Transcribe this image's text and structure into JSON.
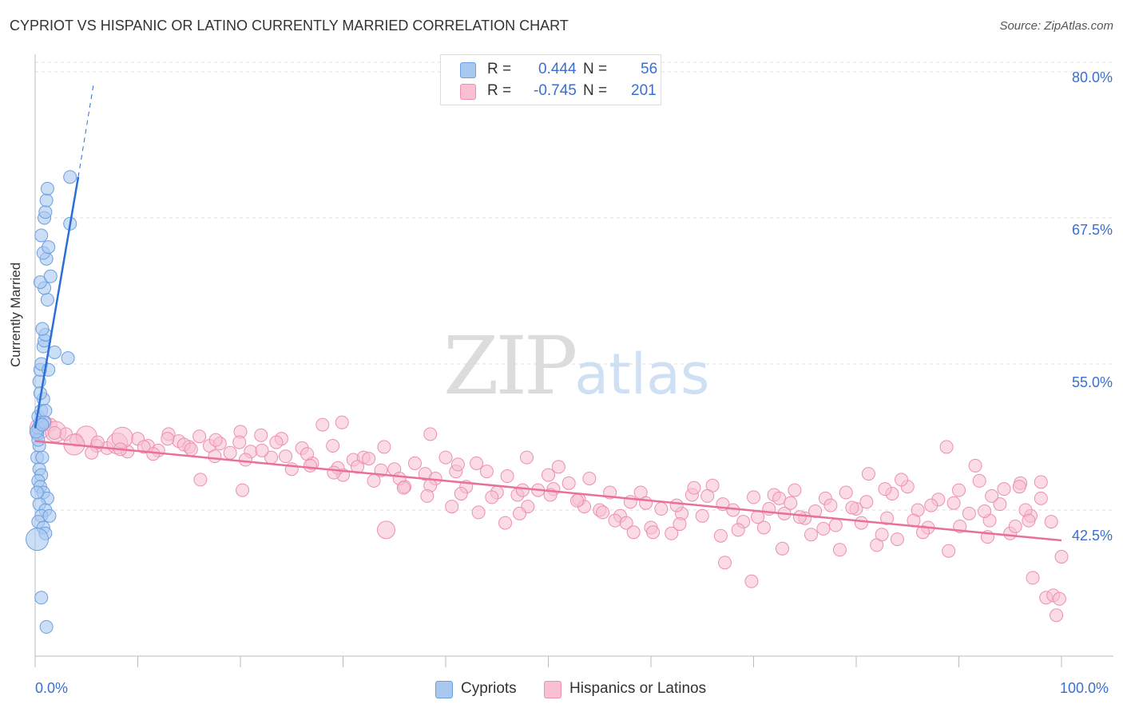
{
  "title": "CYPRIOT VS HISPANIC OR LATINO CURRENTLY MARRIED CORRELATION CHART",
  "source": "Source: ZipAtlas.com",
  "watermark": {
    "zip": "ZIP",
    "atlas": "atlas"
  },
  "legend": {
    "rows": [
      {
        "r_label": "R =",
        "r_value": "0.444",
        "n_label": "N =",
        "n_value": "56",
        "color": "#a8c8f0",
        "border": "#6a9fe0"
      },
      {
        "r_label": "R =",
        "r_value": "-0.745",
        "n_label": "N =",
        "n_value": "201",
        "color": "#f8c0d2",
        "border": "#ec8fae"
      }
    ]
  },
  "bottom_legend": [
    {
      "label": "Cypriots",
      "color": "#a8c8f0",
      "border": "#6a9fe0"
    },
    {
      "label": "Hispanics or Latinos",
      "color": "#f8c0d2",
      "border": "#ec8fae"
    }
  ],
  "chart_data": {
    "type": "scatter",
    "title": "CYPRIOT VS HISPANIC OR LATINO CURRENTLY MARRIED CORRELATION CHART",
    "xlabel": "",
    "ylabel": "Currently Married",
    "xlim": [
      0,
      100
    ],
    "ylim": [
      30,
      81.5
    ],
    "x_tick_labels": [
      "0.0%",
      "100.0%"
    ],
    "y_ticks": [
      42.5,
      55.0,
      67.5,
      80.0
    ],
    "y_tick_labels": [
      "42.5%",
      "55.0%",
      "67.5%",
      "80.0%"
    ],
    "grid": true,
    "colors": {
      "cypriot": "#6a9fe0",
      "cypriot_fill": "#a8c8f0",
      "hispanic": "#ec8fae",
      "hispanic_fill": "#f8c0d2",
      "cypriot_line": "#2b6fd6",
      "hispanic_line": "#e8709a"
    },
    "series": [
      {
        "name": "Cypriots",
        "trend": {
          "x": [
            0.0,
            4.2
          ],
          "y": [
            49.5,
            71.0
          ],
          "dashed_to": [
            5.7,
            79.0
          ]
        },
        "points": [
          [
            0.2,
            49.0
          ],
          [
            0.3,
            49.5
          ],
          [
            0.4,
            48.0
          ],
          [
            0.2,
            47.0
          ],
          [
            0.5,
            50.0
          ],
          [
            0.3,
            50.5
          ],
          [
            0.6,
            51.0
          ],
          [
            0.8,
            52.0
          ],
          [
            0.4,
            53.5
          ],
          [
            0.5,
            54.5
          ],
          [
            0.6,
            55.0
          ],
          [
            0.8,
            56.5
          ],
          [
            0.9,
            57.0
          ],
          [
            1.0,
            57.5
          ],
          [
            0.7,
            58.0
          ],
          [
            1.2,
            60.5
          ],
          [
            0.9,
            61.5
          ],
          [
            0.5,
            62.0
          ],
          [
            1.5,
            62.5
          ],
          [
            1.1,
            64.0
          ],
          [
            0.8,
            64.5
          ],
          [
            1.3,
            65.0
          ],
          [
            0.6,
            66.0
          ],
          [
            0.9,
            67.5
          ],
          [
            3.4,
            67.0
          ],
          [
            1.0,
            68.0
          ],
          [
            1.1,
            69.0
          ],
          [
            1.2,
            70.0
          ],
          [
            3.4,
            71.0
          ],
          [
            1.9,
            56.0
          ],
          [
            3.2,
            55.5
          ],
          [
            1.3,
            54.5
          ],
          [
            1.0,
            51.0
          ],
          [
            0.4,
            46.0
          ],
          [
            0.6,
            45.5
          ],
          [
            0.3,
            45.0
          ],
          [
            0.5,
            44.5
          ],
          [
            0.8,
            44.0
          ],
          [
            1.2,
            43.5
          ],
          [
            0.4,
            43.0
          ],
          [
            1.0,
            42.5
          ],
          [
            0.6,
            42.0
          ],
          [
            1.4,
            42.0
          ],
          [
            0.3,
            41.5
          ],
          [
            0.8,
            41.0
          ],
          [
            1.0,
            40.5
          ],
          [
            0.2,
            40.0
          ],
          [
            0.6,
            35.0
          ],
          [
            1.1,
            32.5
          ],
          [
            0.3,
            48.5
          ],
          [
            0.1,
            49.2
          ],
          [
            0.2,
            44.0
          ],
          [
            0.7,
            47.0
          ],
          [
            0.9,
            50.0
          ],
          [
            0.5,
            52.5
          ],
          [
            0.7,
            49.8
          ]
        ],
        "point_sizes": "mostly r≈8, a few larger (r≈14) near x≈0"
      },
      {
        "name": "Hispanics or Latinos",
        "trend": {
          "x": [
            0.0,
            100.0
          ],
          "y": [
            48.4,
            39.9
          ]
        },
        "points": [
          [
            0.5,
            49.5
          ],
          [
            1.0,
            50.0
          ],
          [
            1.5,
            49.8
          ],
          [
            2.0,
            49.2
          ],
          [
            3.0,
            49.0
          ],
          [
            4.0,
            48.5
          ],
          [
            5.0,
            48.8
          ],
          [
            6.0,
            48.0
          ],
          [
            7.0,
            47.8
          ],
          [
            8.0,
            48.2
          ],
          [
            9.0,
            47.5
          ],
          [
            10.0,
            48.6
          ],
          [
            11.0,
            48.0
          ],
          [
            12.0,
            47.6
          ],
          [
            13.0,
            49.0
          ],
          [
            14.0,
            48.4
          ],
          [
            15.0,
            47.9
          ],
          [
            16.0,
            48.8
          ],
          [
            17.0,
            48.0
          ],
          [
            18.0,
            48.2
          ],
          [
            19.0,
            47.4
          ],
          [
            20.0,
            49.2
          ],
          [
            21.0,
            47.5
          ],
          [
            22.0,
            48.9
          ],
          [
            23.0,
            47.0
          ],
          [
            24.0,
            48.6
          ],
          [
            25.0,
            46.0
          ],
          [
            26.0,
            47.8
          ],
          [
            27.0,
            46.5
          ],
          [
            28.0,
            49.8
          ],
          [
            29.0,
            48.0
          ],
          [
            30.0,
            45.5
          ],
          [
            31.0,
            46.8
          ],
          [
            32.0,
            47.0
          ],
          [
            33.0,
            45.0
          ],
          [
            34.0,
            47.9
          ],
          [
            35.0,
            46.0
          ],
          [
            36.0,
            44.5
          ],
          [
            37.0,
            46.5
          ],
          [
            38.0,
            45.6
          ],
          [
            39.0,
            45.2
          ],
          [
            40.0,
            47.0
          ],
          [
            41.0,
            45.8
          ],
          [
            42.0,
            44.5
          ],
          [
            43.0,
            46.5
          ],
          [
            44.0,
            45.8
          ],
          [
            45.0,
            44.0
          ],
          [
            46.0,
            45.4
          ],
          [
            47.0,
            43.8
          ],
          [
            48.0,
            42.8
          ],
          [
            49.0,
            44.2
          ],
          [
            50.0,
            45.5
          ],
          [
            51.0,
            46.2
          ],
          [
            52.0,
            44.8
          ],
          [
            53.0,
            43.4
          ],
          [
            54.0,
            45.2
          ],
          [
            55.0,
            42.5
          ],
          [
            56.0,
            44.0
          ],
          [
            57.0,
            42.0
          ],
          [
            58.0,
            43.2
          ],
          [
            59.0,
            44.0
          ],
          [
            60.0,
            41.0
          ],
          [
            61.0,
            42.6
          ],
          [
            62.0,
            40.5
          ],
          [
            63.0,
            42.2
          ],
          [
            64.0,
            43.8
          ],
          [
            65.0,
            42.0
          ],
          [
            66.0,
            44.6
          ],
          [
            67.0,
            43.0
          ],
          [
            68.0,
            42.5
          ],
          [
            69.0,
            41.5
          ],
          [
            70.0,
            43.6
          ],
          [
            71.0,
            41.0
          ],
          [
            72.0,
            43.8
          ],
          [
            73.0,
            42.2
          ],
          [
            74.0,
            44.2
          ],
          [
            75.0,
            41.8
          ],
          [
            76.0,
            42.4
          ],
          [
            77.0,
            43.5
          ],
          [
            78.0,
            41.2
          ],
          [
            79.0,
            44.0
          ],
          [
            80.0,
            42.6
          ],
          [
            81.0,
            43.2
          ],
          [
            82.0,
            39.5
          ],
          [
            83.0,
            41.8
          ],
          [
            84.0,
            40.0
          ],
          [
            85.0,
            44.5
          ],
          [
            86.0,
            42.5
          ],
          [
            87.0,
            41.0
          ],
          [
            88.0,
            43.4
          ],
          [
            89.0,
            39.0
          ],
          [
            90.0,
            44.2
          ],
          [
            91.0,
            42.2
          ],
          [
            92.0,
            45.0
          ],
          [
            93.0,
            41.6
          ],
          [
            94.0,
            43.0
          ],
          [
            95.0,
            40.5
          ],
          [
            96.0,
            44.8
          ],
          [
            97.0,
            42.0
          ],
          [
            98.0,
            43.5
          ],
          [
            99.0,
            41.5
          ],
          [
            100.0,
            38.5
          ],
          [
            47.5,
            44.2
          ],
          [
            62.5,
            42.9
          ],
          [
            72.5,
            43.5
          ],
          [
            82.5,
            40.4
          ],
          [
            92.5,
            42.4
          ],
          [
            96.5,
            42.5
          ],
          [
            98.5,
            35.0
          ],
          [
            99.5,
            33.5
          ],
          [
            5.5,
            47.4
          ],
          [
            8.5,
            48.7
          ],
          [
            11.5,
            47.3
          ],
          [
            14.5,
            48.1
          ],
          [
            17.5,
            47.1
          ],
          [
            20.5,
            46.8
          ],
          [
            23.5,
            48.3
          ],
          [
            26.5,
            47.3
          ],
          [
            29.5,
            46.1
          ],
          [
            32.5,
            46.9
          ],
          [
            35.5,
            45.2
          ],
          [
            38.5,
            44.6
          ],
          [
            41.5,
            43.9
          ],
          [
            44.5,
            43.6
          ],
          [
            47.2,
            42.2
          ],
          [
            50.5,
            44.3
          ],
          [
            53.5,
            42.8
          ],
          [
            56.5,
            41.6
          ],
          [
            59.5,
            43.1
          ],
          [
            62.8,
            41.3
          ],
          [
            65.5,
            43.7
          ],
          [
            68.5,
            40.8
          ],
          [
            71.5,
            42.6
          ],
          [
            74.5,
            41.9
          ],
          [
            77.5,
            42.9
          ],
          [
            80.5,
            41.4
          ],
          [
            83.5,
            43.9
          ],
          [
            86.5,
            40.6
          ],
          [
            89.5,
            43.1
          ],
          [
            92.8,
            40.2
          ],
          [
            95.5,
            41.1
          ],
          [
            98.0,
            44.9
          ],
          [
            99.2,
            35.2
          ],
          [
            67.2,
            38.0
          ],
          [
            69.8,
            36.4
          ],
          [
            60.2,
            40.6
          ],
          [
            57.6,
            41.4
          ],
          [
            55.3,
            42.3
          ],
          [
            52.8,
            43.3
          ],
          [
            50.2,
            43.8
          ],
          [
            45.8,
            41.4
          ],
          [
            43.2,
            42.3
          ],
          [
            40.6,
            42.8
          ],
          [
            38.2,
            43.7
          ],
          [
            35.9,
            44.4
          ],
          [
            33.7,
            45.9
          ],
          [
            31.4,
            46.2
          ],
          [
            29.1,
            45.7
          ],
          [
            26.8,
            46.3
          ],
          [
            24.4,
            47.1
          ],
          [
            22.1,
            47.6
          ],
          [
            19.9,
            48.3
          ],
          [
            17.6,
            48.5
          ],
          [
            15.2,
            47.7
          ],
          [
            12.9,
            48.6
          ],
          [
            10.6,
            47.9
          ],
          [
            8.3,
            47.7
          ],
          [
            6.1,
            48.3
          ],
          [
            3.8,
            48.1
          ],
          [
            1.9,
            49.1
          ],
          [
            72.8,
            39.2
          ],
          [
            75.6,
            40.4
          ],
          [
            78.4,
            39.1
          ],
          [
            81.2,
            45.6
          ],
          [
            84.4,
            45.1
          ],
          [
            87.3,
            42.9
          ],
          [
            90.1,
            41.1
          ],
          [
            93.2,
            43.7
          ],
          [
            95.9,
            44.5
          ],
          [
            97.2,
            36.7
          ],
          [
            64.2,
            44.4
          ],
          [
            66.8,
            40.3
          ],
          [
            70.4,
            41.9
          ],
          [
            73.6,
            43.1
          ],
          [
            76.8,
            40.9
          ],
          [
            79.6,
            42.7
          ],
          [
            82.8,
            44.3
          ],
          [
            85.6,
            41.6
          ],
          [
            88.8,
            47.9
          ],
          [
            91.6,
            46.3
          ],
          [
            94.4,
            44.3
          ],
          [
            96.8,
            41.6
          ],
          [
            99.8,
            34.9
          ],
          [
            20.2,
            44.2
          ],
          [
            16.1,
            45.1
          ],
          [
            29.9,
            50.0
          ],
          [
            41.2,
            46.4
          ],
          [
            47.9,
            47.0
          ],
          [
            34.2,
            40.8
          ],
          [
            38.5,
            49.0
          ],
          [
            58.3,
            40.6
          ]
        ],
        "point_sizes": "mostly r≈8, several larger (r≈13–15) near x<10 and at x≈29"
      }
    ]
  }
}
